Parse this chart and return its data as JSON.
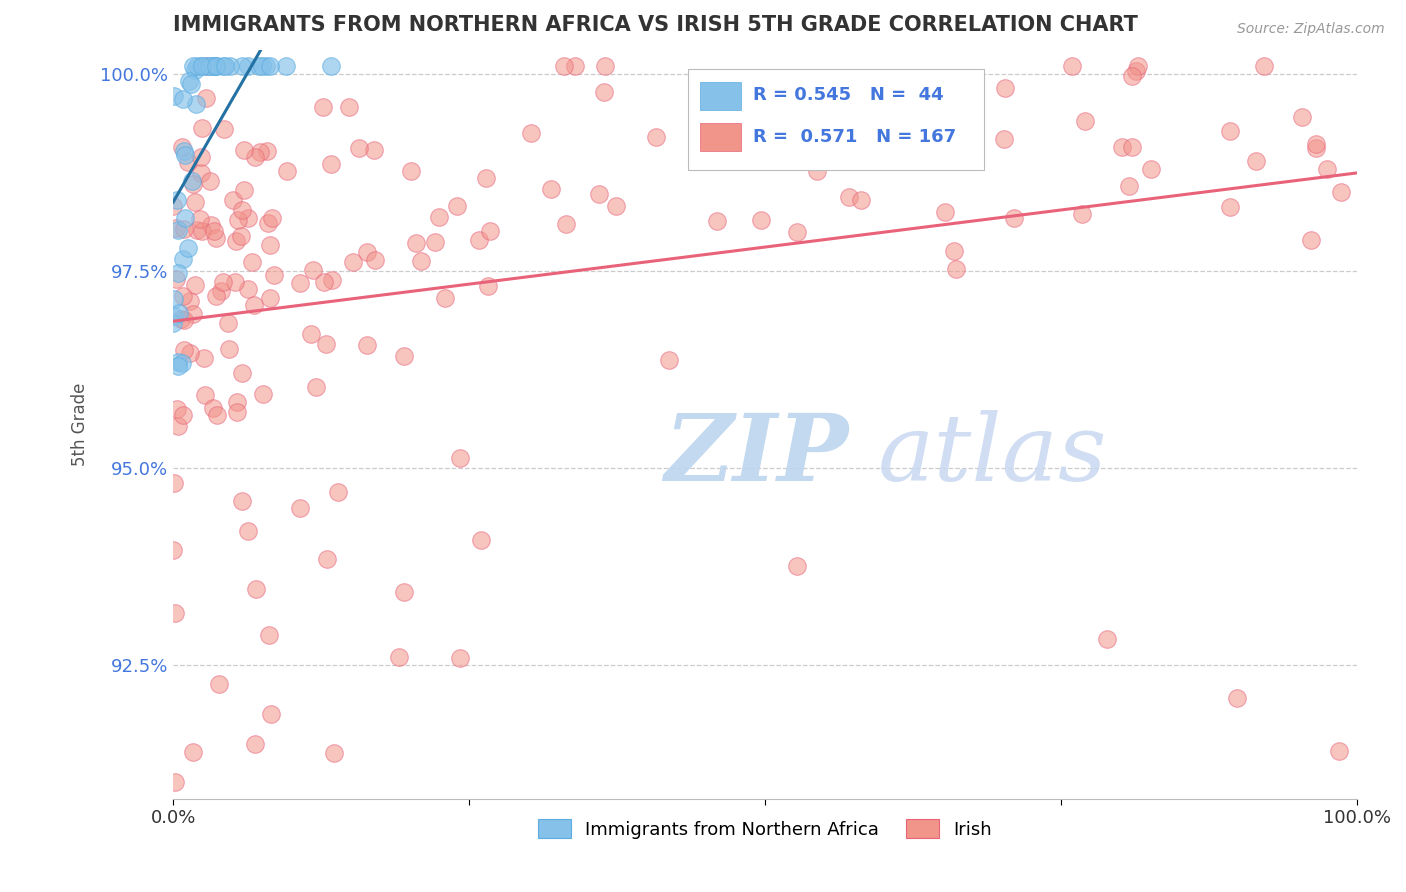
{
  "title": "IMMIGRANTS FROM NORTHERN AFRICA VS IRISH 5TH GRADE CORRELATION CHART",
  "source_text": "Source: ZipAtlas.com",
  "ylabel": "5th Grade",
  "xmin": 0.0,
  "xmax": 1.0,
  "ymin": 0.908,
  "ymax": 1.003,
  "yticks": [
    0.925,
    0.95,
    0.975,
    1.0
  ],
  "ytick_labels": [
    "92.5%",
    "95.0%",
    "97.5%",
    "100.0%"
  ],
  "xtick_labels": [
    "0.0%",
    "",
    "",
    "",
    "100.0%"
  ],
  "blue_R": 0.545,
  "blue_N": 44,
  "pink_R": 0.571,
  "pink_N": 167,
  "blue_color": "#85C1E9",
  "pink_color": "#F1948A",
  "blue_edge_color": "#5DADE2",
  "pink_edge_color": "#E8637A",
  "blue_line_color": "#2471A3",
  "pink_line_color": "#E8637A",
  "watermark_zip_color": "#C8D8F0",
  "watermark_atlas_color": "#C8D8F0",
  "legend_label_blue": "Immigrants from Northern Africa",
  "legend_label_pink": "Irish",
  "background_color": "#FFFFFF",
  "grid_color": "#CCCCCC",
  "tick_color": "#4477DD",
  "title_color": "#333333",
  "source_color": "#999999"
}
